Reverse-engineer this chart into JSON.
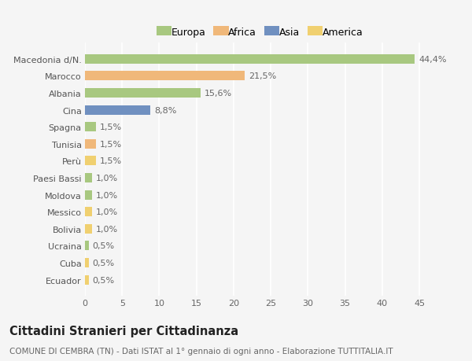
{
  "categories": [
    "Macedonia d/N.",
    "Marocco",
    "Albania",
    "Cina",
    "Spagna",
    "Tunisia",
    "Perù",
    "Paesi Bassi",
    "Moldova",
    "Messico",
    "Bolivia",
    "Ucraina",
    "Cuba",
    "Ecuador"
  ],
  "values": [
    44.4,
    21.5,
    15.6,
    8.8,
    1.5,
    1.5,
    1.5,
    1.0,
    1.0,
    1.0,
    1.0,
    0.5,
    0.5,
    0.5
  ],
  "labels": [
    "44,4%",
    "21,5%",
    "15,6%",
    "8,8%",
    "1,5%",
    "1,5%",
    "1,5%",
    "1,0%",
    "1,0%",
    "1,0%",
    "1,0%",
    "0,5%",
    "0,5%",
    "0,5%"
  ],
  "colors": [
    "#a8c880",
    "#f0b87a",
    "#a8c880",
    "#7090c0",
    "#a8c880",
    "#f0b87a",
    "#f0d070",
    "#a8c880",
    "#a8c880",
    "#f0d070",
    "#f0d070",
    "#a8c880",
    "#f0d070",
    "#f0d070"
  ],
  "legend_labels": [
    "Europa",
    "Africa",
    "Asia",
    "America"
  ],
  "legend_colors": [
    "#a8c880",
    "#f0b87a",
    "#7090c0",
    "#f0d070"
  ],
  "xlim": [
    0,
    47
  ],
  "xticks": [
    0,
    5,
    10,
    15,
    20,
    25,
    30,
    35,
    40,
    45
  ],
  "title": "Cittadini Stranieri per Cittadinanza",
  "subtitle": "COMUNE DI CEMBRA (TN) - Dati ISTAT al 1° gennaio di ogni anno - Elaborazione TUTTITALIA.IT",
  "background_color": "#f5f5f5",
  "plot_bg_color": "#f5f5f5",
  "grid_color": "#ffffff",
  "bar_height": 0.55,
  "label_fontsize": 8,
  "tick_fontsize": 8,
  "title_fontsize": 10.5,
  "subtitle_fontsize": 7.5
}
